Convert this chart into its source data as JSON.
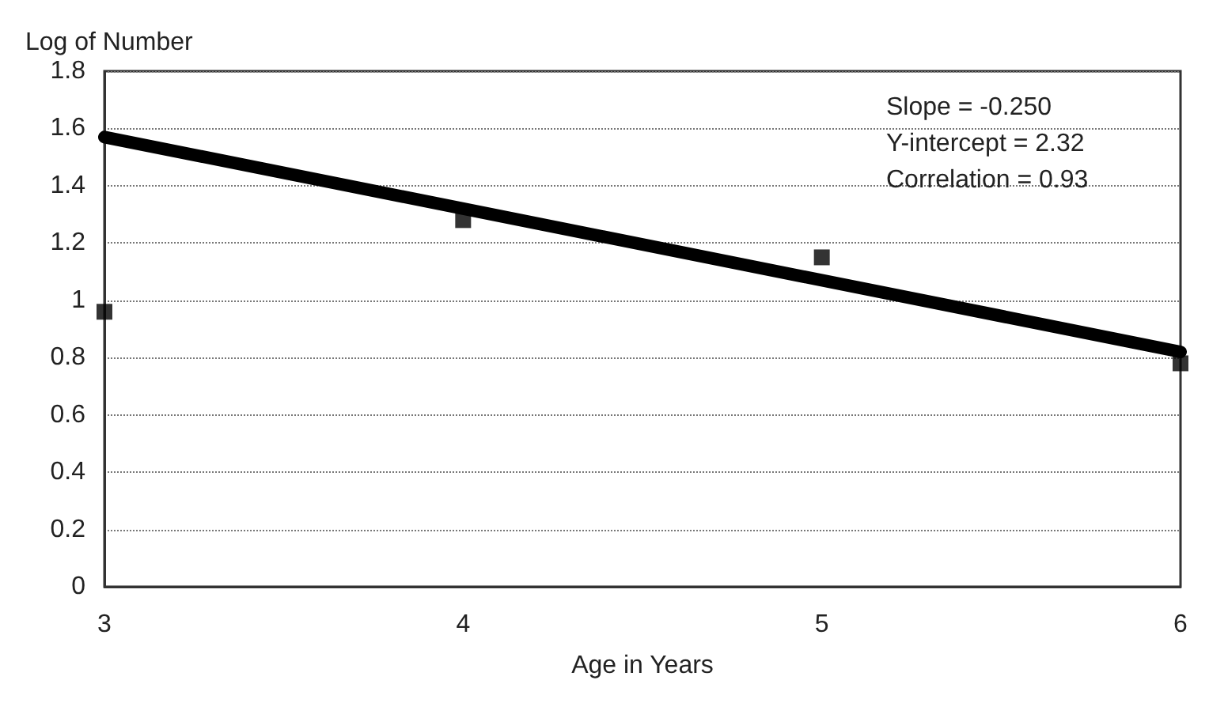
{
  "chart_data": {
    "type": "scatter",
    "xlabel": "Age in Years",
    "ylabel": "Log of Number",
    "xlim": [
      3,
      6
    ],
    "xticks": [
      3,
      4,
      5,
      6
    ],
    "ylim": [
      0,
      1.8
    ],
    "yticks": [
      0,
      0.2,
      0.4,
      0.6,
      0.8,
      1,
      1.2,
      1.4,
      1.6,
      1.8
    ],
    "grid": "y",
    "annotations": [
      "Slope = -0.250",
      "Y-intercept = 2.32",
      "Correlation = 0.93"
    ],
    "series": [
      {
        "marker": "square",
        "color": "#000000",
        "x": [
          3,
          4,
          5,
          6
        ],
        "values": [
          0.96,
          1.28,
          1.15,
          0.78
        ]
      },
      {
        "type": "line",
        "marker": "none",
        "color": "#000000",
        "x": [
          3,
          6
        ],
        "values": [
          1.57,
          0.82
        ]
      }
    ]
  }
}
